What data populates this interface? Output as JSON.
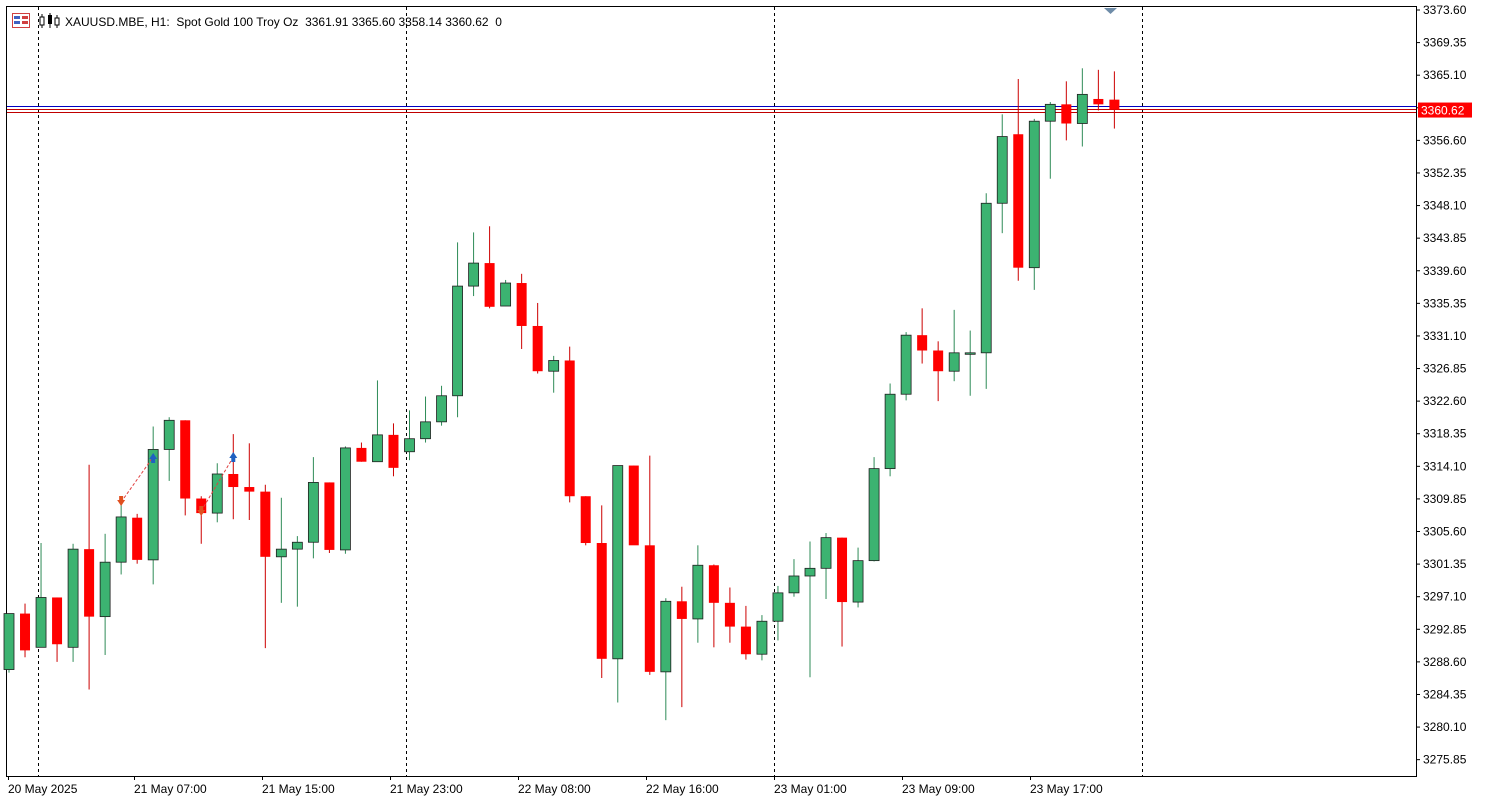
{
  "header": {
    "symbol_line": "XAUUSD.MBE, H1:  Spot Gold 100 Troy Oz  3361.91 3365.60 3358.14 3360.62  0"
  },
  "price_tag": "3360.62",
  "colors": {
    "bull": "#3cb371",
    "bear": "#ff0000",
    "bid_line": "#c00000",
    "ask_line": "#0000c0"
  },
  "chart_data": {
    "type": "candlestick",
    "symbol": "XAUUSD.MBE",
    "timeframe": "H1",
    "ylim": [
      3273.72,
      3373.6
    ],
    "y_ticks": [
      "3373.60",
      "3369.35",
      "3365.10",
      "3360.85",
      "3356.60",
      "3352.35",
      "3348.10",
      "3343.85",
      "3339.60",
      "3335.35",
      "3331.10",
      "3326.85",
      "3322.60",
      "3318.35",
      "3314.10",
      "3309.85",
      "3305.60",
      "3301.35",
      "3297.10",
      "3292.85",
      "3288.60",
      "3284.35",
      "3280.10",
      "3275.85"
    ],
    "x_labels": [
      "20 May 2025",
      "21 May 07:00",
      "21 May 15:00",
      "21 May 23:00",
      "22 May 08:00",
      "22 May 16:00",
      "23 May 01:00",
      "23 May 09:00",
      "23 May 17:00"
    ],
    "last_price": 3360.62,
    "ohlc": [
      [
        3287.6,
        3294.9,
        3287.2,
        3294.9
      ],
      [
        3294.9,
        3296.2,
        3289.2,
        3290.1
      ],
      [
        3290.5,
        3304.1,
        3290.5,
        3297.0
      ],
      [
        3297.0,
        3297.0,
        3288.6,
        3290.9
      ],
      [
        3290.5,
        3304.0,
        3288.6,
        3303.3
      ],
      [
        3303.3,
        3314.3,
        3285.0,
        3294.5
      ],
      [
        3294.5,
        3305.3,
        3289.5,
        3301.6
      ],
      [
        3301.6,
        3309.2,
        3300.0,
        3307.5
      ],
      [
        3307.4,
        3307.9,
        3301.4,
        3301.9
      ],
      [
        3301.9,
        3319.3,
        3298.7,
        3316.3
      ],
      [
        3316.3,
        3320.5,
        3312.2,
        3320.1
      ],
      [
        3320.1,
        3320.1,
        3307.7,
        3309.9
      ],
      [
        3309.9,
        3310.2,
        3304.0,
        3308.0
      ],
      [
        3308.0,
        3314.5,
        3306.8,
        3313.1
      ],
      [
        3313.1,
        3318.3,
        3307.2,
        3311.4
      ],
      [
        3311.4,
        3317.1,
        3307.1,
        3310.8
      ],
      [
        3310.8,
        3311.7,
        3290.4,
        3302.3
      ],
      [
        3302.3,
        3310.0,
        3296.3,
        3303.3
      ],
      [
        3303.3,
        3305.0,
        3295.8,
        3304.2
      ],
      [
        3304.2,
        3315.3,
        3302.1,
        3312.0
      ],
      [
        3312.0,
        3312.0,
        3302.8,
        3303.2
      ],
      [
        3303.2,
        3316.7,
        3302.7,
        3316.5
      ],
      [
        3316.5,
        3317.2,
        3314.7,
        3314.7
      ],
      [
        3314.7,
        3325.3,
        3314.7,
        3318.2
      ],
      [
        3318.2,
        3319.7,
        3312.8,
        3313.9
      ],
      [
        3316.0,
        3321.4,
        3314.9,
        3317.7
      ],
      [
        3317.7,
        3323.2,
        3317.2,
        3319.9
      ],
      [
        3319.9,
        3324.6,
        3319.4,
        3323.3
      ],
      [
        3323.3,
        3343.3,
        3320.5,
        3337.6
      ],
      [
        3337.6,
        3344.6,
        3336.3,
        3340.6
      ],
      [
        3340.6,
        3345.4,
        3334.7,
        3334.9
      ],
      [
        3335.0,
        3338.4,
        3335.0,
        3338.0
      ],
      [
        3338.0,
        3339.2,
        3329.4,
        3332.4
      ],
      [
        3332.4,
        3335.4,
        3326.2,
        3326.5
      ],
      [
        3326.5,
        3328.5,
        3323.7,
        3327.9
      ],
      [
        3327.9,
        3329.7,
        3309.4,
        3310.2
      ],
      [
        3310.2,
        3310.2,
        3303.8,
        3304.1
      ],
      [
        3304.1,
        3309.0,
        3286.5,
        3289.0
      ],
      [
        3289.0,
        3314.2,
        3283.3,
        3314.2
      ],
      [
        3314.2,
        3314.2,
        3304.3,
        3303.8
      ],
      [
        3303.8,
        3315.5,
        3286.9,
        3287.3
      ],
      [
        3287.3,
        3296.9,
        3281.0,
        3296.5
      ],
      [
        3296.5,
        3298.4,
        3282.7,
        3294.2
      ],
      [
        3294.2,
        3303.8,
        3291.1,
        3301.2
      ],
      [
        3301.2,
        3301.3,
        3290.5,
        3296.3
      ],
      [
        3296.3,
        3298.3,
        3291.1,
        3293.2
      ],
      [
        3293.2,
        3295.9,
        3288.9,
        3289.6
      ],
      [
        3289.6,
        3294.7,
        3288.8,
        3293.9
      ],
      [
        3293.9,
        3298.5,
        3291.4,
        3297.6
      ],
      [
        3297.6,
        3302.0,
        3297.1,
        3299.8
      ],
      [
        3299.8,
        3304.3,
        3286.6,
        3300.8
      ],
      [
        3300.8,
        3305.4,
        3296.8,
        3304.8
      ],
      [
        3304.8,
        3304.8,
        3290.6,
        3296.4
      ],
      [
        3296.4,
        3303.5,
        3295.7,
        3301.8
      ],
      [
        3301.8,
        3315.3,
        3301.7,
        3313.8
      ],
      [
        3313.8,
        3324.9,
        3312.8,
        3323.5
      ],
      [
        3323.5,
        3331.6,
        3322.7,
        3331.2
      ],
      [
        3331.2,
        3334.7,
        3327.5,
        3329.2
      ],
      [
        3329.2,
        3330.4,
        3322.6,
        3326.5
      ],
      [
        3326.5,
        3334.5,
        3325.2,
        3328.9
      ],
      [
        3328.9,
        3331.8,
        3323.3,
        3328.9
      ],
      [
        3328.9,
        3349.7,
        3324.2,
        3348.4
      ],
      [
        3348.4,
        3360.0,
        3344.5,
        3357.1
      ],
      [
        3357.4,
        3364.6,
        3338.3,
        3340.0
      ],
      [
        3340.0,
        3359.4,
        3337.1,
        3359.1
      ],
      [
        3359.1,
        3361.6,
        3351.6,
        3361.3
      ],
      [
        3361.3,
        3364.3,
        3356.6,
        3358.8
      ],
      [
        3358.8,
        3366.0,
        3355.8,
        3362.6
      ],
      [
        3362.0,
        3365.8,
        3360.5,
        3361.3
      ],
      [
        3361.91,
        3365.6,
        3358.14,
        3360.62
      ]
    ]
  }
}
